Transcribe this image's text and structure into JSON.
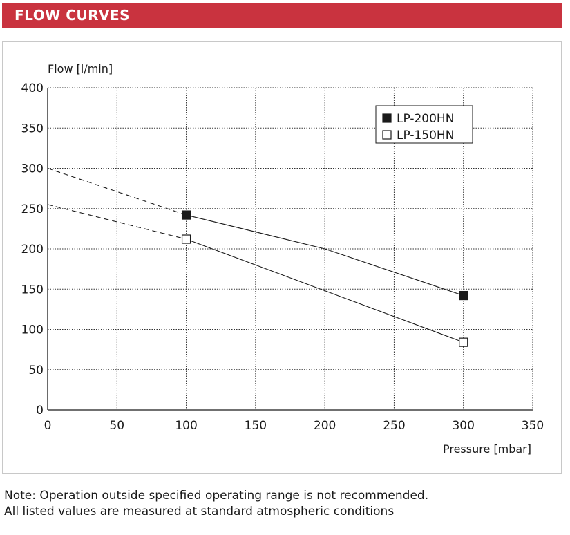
{
  "header": {
    "title": "FLOW CURVES"
  },
  "chart_data": {
    "type": "line",
    "ylabel": "Flow [l/min]",
    "xlabel": "Pressure [mbar]",
    "xlim": [
      0,
      350
    ],
    "ylim": [
      0,
      400
    ],
    "xticks": [
      0,
      50,
      100,
      150,
      200,
      250,
      300,
      350
    ],
    "yticks": [
      0,
      50,
      100,
      150,
      200,
      250,
      300,
      350,
      400
    ],
    "grid": true,
    "legend_position": "top-right",
    "series": [
      {
        "name": "LP-200HN",
        "marker": "filled-square",
        "color": "#1a1a1a",
        "dashed_extrapolation": [
          [
            0,
            300
          ],
          [
            100,
            242
          ]
        ],
        "points": [
          [
            100,
            242
          ],
          [
            200,
            200
          ],
          [
            300,
            142
          ]
        ],
        "marker_points": [
          [
            100,
            242
          ],
          [
            300,
            142
          ]
        ]
      },
      {
        "name": "LP-150HN",
        "marker": "open-square",
        "color": "#1a1a1a",
        "dashed_extrapolation": [
          [
            0,
            255
          ],
          [
            100,
            212
          ]
        ],
        "points": [
          [
            100,
            212
          ],
          [
            300,
            84
          ]
        ],
        "marker_points": [
          [
            100,
            212
          ],
          [
            300,
            84
          ]
        ]
      }
    ]
  },
  "note": {
    "line1": "Note: Operation outside specified operating range is not recommended.",
    "line2": "All listed values are measured at standard atmospheric conditions"
  }
}
